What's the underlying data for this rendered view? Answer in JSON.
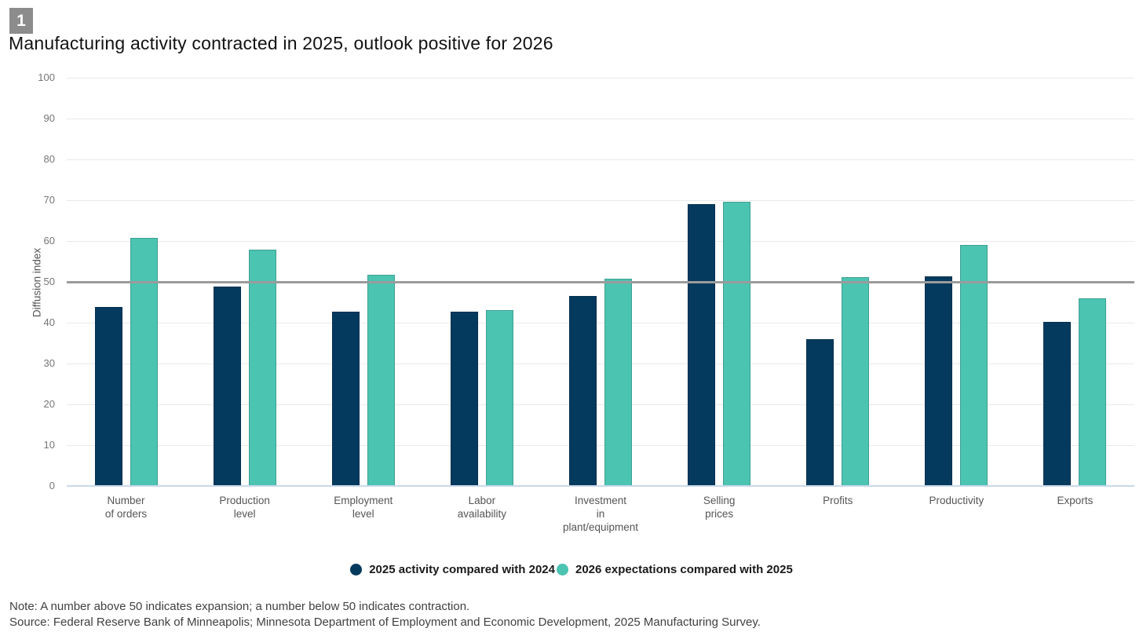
{
  "figure_number": "1",
  "title": "Manufacturing activity contracted in 2025, outlook positive for 2026",
  "chart_data": {
    "type": "bar",
    "title": "Manufacturing activity contracted in 2025, outlook positive for 2026",
    "xlabel": "",
    "ylabel": "Diffusion index",
    "ylim": [
      0,
      100
    ],
    "ytick_step": 10,
    "grid": true,
    "reference_line": 50,
    "legend_position": "bottom-center",
    "categories": [
      "Number\nof orders",
      "Production\nlevel",
      "Employment\nlevel",
      "Labor\navailability",
      "Investment\nin\nplant/equipment",
      "Selling\nprices",
      "Profits",
      "Productivity",
      "Exports"
    ],
    "series": [
      {
        "name": "2025 activity compared with 2024",
        "color": "#043a5e",
        "values": [
          43.8,
          48.9,
          42.6,
          42.6,
          46.5,
          69.1,
          36.0,
          51.4,
          40.2
        ]
      },
      {
        "name": "2026 expectations compared with 2025",
        "color": "#4bc4b1",
        "values": [
          60.7,
          57.9,
          51.7,
          43.1,
          50.7,
          69.6,
          51.2,
          59.0,
          46.0
        ]
      }
    ]
  },
  "colors": {
    "series_2025": "#043a5e",
    "series_2026": "#4bc4b1",
    "reference_line": "#9b9b9b",
    "gridline": "#e9e9e9",
    "baseline": "#c9d9ea",
    "badge_background": "#8c8c8c",
    "tick_text": "#757575",
    "label_text": "#555555"
  },
  "footer": {
    "note": "Note: A number above 50 indicates expansion; a number below 50 indicates contraction.",
    "source": "Source: Federal Reserve Bank of Minneapolis; Minnesota Department of Employment and Economic Development, 2025 Manufacturing Survey."
  }
}
